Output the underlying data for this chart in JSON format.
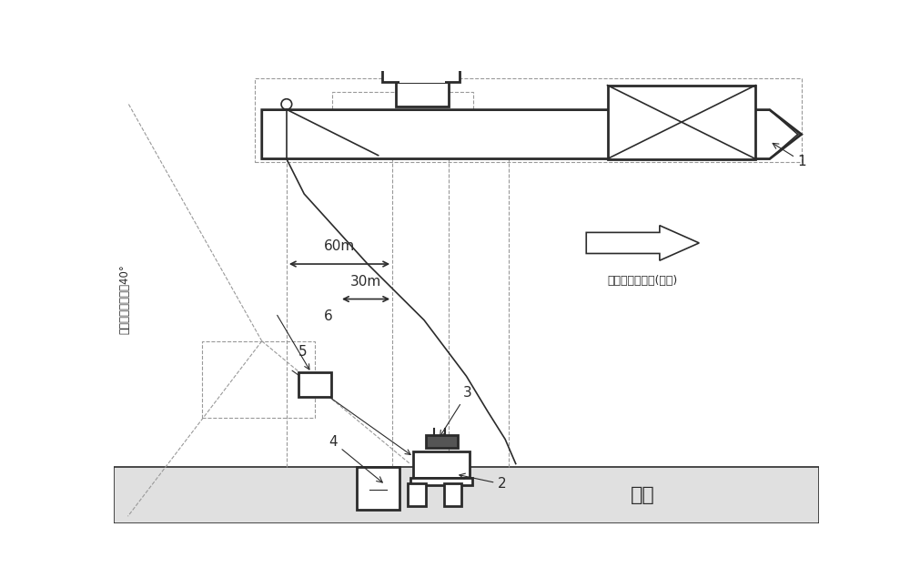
{
  "bg_color": "#ffffff",
  "line_color": "#2b2b2b",
  "dashed_color": "#999999",
  "seabed_label": "海底",
  "direction_label": "施工船调整方向(示例)",
  "sonar_angle_label": "成像声纳垂直视觓40°",
  "dim_60m": "60m",
  "dim_30m": "30m",
  "label_1": "1",
  "label_2": "2",
  "label_3": "3",
  "label_4": "4",
  "label_5": "5",
  "label_6": "6"
}
